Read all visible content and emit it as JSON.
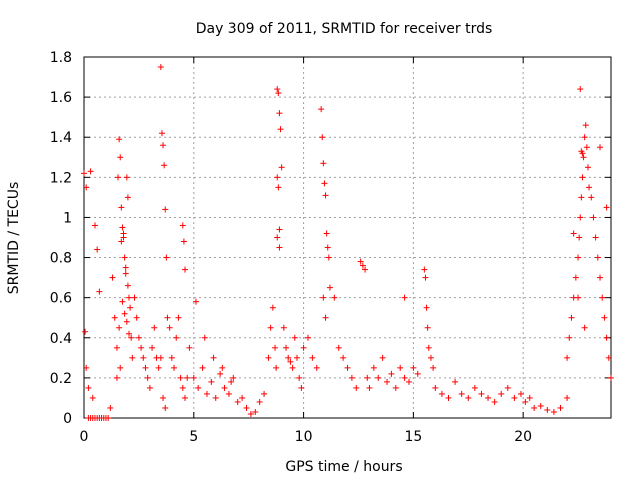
{
  "chart_data": {
    "type": "scatter",
    "title": "Day 309 of 2011, SRMTID for receiver trds",
    "xlabel": "GPS time / hours",
    "ylabel": "SRMTID / TECUs",
    "xlim": [
      0,
      24
    ],
    "ylim": [
      0,
      1.8
    ],
    "x_ticks": [
      0,
      5,
      10,
      15,
      20
    ],
    "x_tick_labels": [
      "0",
      "5",
      "10",
      "15",
      "20"
    ],
    "y_ticks": [
      0,
      0.2,
      0.4,
      0.6,
      0.8,
      1.0,
      1.2,
      1.4,
      1.6,
      1.8
    ],
    "y_tick_labels": [
      "0",
      "0.2",
      "0.4",
      "0.6",
      "0.8",
      "1",
      "1.2",
      "1.4",
      "1.6",
      "1.8"
    ],
    "grid": true,
    "marker": "+",
    "marker_color": "#ff0000",
    "series": [
      {
        "name": "SRMTID",
        "x": [
          0.0,
          0.05,
          0.1,
          0.2,
          0.3,
          0.4,
          0.5,
          0.6,
          0.7,
          0.8,
          0.9,
          1.0,
          1.1,
          1.2,
          0.1,
          0.3,
          0.5,
          0.6,
          0.7,
          0.2,
          0.4,
          1.3,
          1.4,
          1.5,
          1.55,
          1.6,
          1.65,
          1.7,
          1.75,
          1.8,
          1.85,
          1.9,
          1.95,
          2.0,
          2.05,
          2.1,
          2.15,
          2.2,
          1.7,
          1.8,
          1.9,
          2.0,
          1.6,
          1.75,
          1.85,
          1.95,
          2.05,
          1.5,
          1.65,
          2.3,
          2.4,
          2.5,
          2.6,
          2.7,
          2.8,
          2.9,
          3.0,
          3.1,
          3.2,
          3.3,
          3.4,
          3.5,
          3.55,
          3.6,
          3.65,
          3.7,
          3.75,
          3.8,
          3.6,
          3.7,
          3.5,
          3.9,
          4.0,
          4.1,
          4.2,
          4.3,
          4.4,
          4.5,
          4.6,
          4.7,
          4.8,
          4.5,
          4.55,
          4.6,
          5.0,
          5.2,
          5.4,
          5.6,
          5.8,
          6.0,
          6.2,
          6.4,
          6.6,
          6.8,
          7.0,
          5.1,
          5.5,
          5.9,
          6.3,
          6.7,
          7.2,
          7.4,
          7.6,
          7.8,
          8.0,
          8.2,
          8.4,
          8.5,
          8.6,
          8.7,
          8.75,
          8.8,
          8.85,
          8.9,
          8.95,
          9.0,
          8.8,
          8.85,
          8.9,
          8.8,
          8.9,
          9.1,
          9.2,
          9.3,
          9.4,
          9.5,
          9.6,
          9.7,
          9.8,
          9.9,
          10.0,
          10.2,
          10.4,
          10.6,
          10.8,
          10.85,
          10.9,
          10.95,
          11.0,
          11.05,
          11.1,
          11.15,
          10.9,
          11.0,
          11.2,
          11.4,
          11.6,
          11.8,
          12.0,
          12.2,
          12.4,
          12.6,
          12.7,
          12.8,
          12.9,
          13.0,
          13.2,
          13.4,
          13.6,
          13.8,
          14.0,
          14.2,
          14.4,
          14.6,
          14.8,
          15.0,
          15.2,
          14.6,
          15.5,
          15.55,
          15.6,
          15.65,
          15.7,
          15.8,
          15.9,
          16.0,
          16.3,
          16.6,
          16.9,
          17.2,
          17.5,
          17.8,
          18.1,
          18.4,
          18.7,
          19.0,
          19.3,
          19.6,
          19.9,
          20.1,
          20.3,
          20.5,
          20.8,
          21.1,
          21.4,
          21.7,
          22.0,
          22.0,
          22.1,
          22.2,
          22.3,
          22.4,
          22.5,
          22.55,
          22.6,
          22.65,
          22.7,
          22.75,
          22.8,
          22.85,
          22.9,
          22.95,
          23.0,
          23.1,
          23.2,
          23.3,
          23.4,
          23.5,
          23.6,
          23.7,
          23.8,
          23.9,
          24.0,
          22.6,
          22.65,
          22.7,
          22.3,
          22.5,
          22.8,
          23.5,
          23.8
        ],
        "y": [
          1.22,
          0.43,
          1.15,
          0.0,
          0.0,
          0.0,
          0.0,
          0.0,
          0.0,
          0.0,
          0.0,
          0.0,
          0.0,
          0.05,
          0.25,
          1.23,
          0.96,
          0.84,
          0.63,
          0.15,
          0.1,
          0.7,
          0.5,
          0.35,
          1.2,
          1.39,
          1.3,
          1.05,
          0.95,
          0.9,
          0.8,
          0.75,
          1.2,
          1.1,
          0.6,
          0.55,
          0.4,
          0.3,
          0.88,
          0.92,
          0.72,
          0.66,
          0.45,
          0.58,
          0.52,
          0.48,
          0.42,
          0.2,
          0.25,
          0.6,
          0.5,
          0.4,
          0.35,
          0.3,
          0.25,
          0.2,
          0.15,
          0.35,
          0.45,
          0.3,
          0.25,
          1.75,
          1.42,
          1.36,
          1.26,
          1.04,
          0.8,
          0.5,
          0.1,
          0.05,
          0.3,
          0.45,
          0.3,
          0.25,
          0.4,
          0.5,
          0.2,
          0.15,
          0.1,
          0.2,
          0.35,
          0.96,
          0.88,
          0.74,
          0.2,
          0.15,
          0.25,
          0.12,
          0.18,
          0.1,
          0.22,
          0.15,
          0.12,
          0.2,
          0.08,
          0.58,
          0.4,
          0.3,
          0.25,
          0.18,
          0.1,
          0.05,
          0.02,
          0.03,
          0.08,
          0.12,
          0.3,
          0.45,
          0.55,
          0.35,
          0.25,
          1.64,
          1.62,
          1.52,
          1.44,
          1.25,
          1.2,
          1.15,
          0.94,
          0.9,
          0.85,
          0.45,
          0.35,
          0.3,
          0.28,
          0.25,
          0.4,
          0.3,
          0.2,
          0.15,
          0.35,
          0.4,
          0.3,
          0.25,
          1.54,
          1.4,
          1.27,
          1.17,
          1.11,
          0.92,
          0.85,
          0.8,
          0.6,
          0.5,
          0.65,
          0.6,
          0.35,
          0.3,
          0.25,
          0.2,
          0.15,
          0.78,
          0.76,
          0.74,
          0.2,
          0.15,
          0.25,
          0.2,
          0.3,
          0.18,
          0.22,
          0.15,
          0.25,
          0.2,
          0.18,
          0.25,
          0.22,
          0.6,
          0.74,
          0.7,
          0.55,
          0.45,
          0.35,
          0.3,
          0.25,
          0.15,
          0.12,
          0.1,
          0.18,
          0.12,
          0.1,
          0.15,
          0.12,
          0.1,
          0.08,
          0.12,
          0.15,
          0.1,
          0.12,
          0.08,
          0.1,
          0.05,
          0.06,
          0.04,
          0.03,
          0.05,
          0.1,
          0.3,
          0.4,
          0.5,
          0.6,
          0.7,
          0.8,
          0.9,
          1.0,
          1.1,
          1.2,
          1.3,
          1.4,
          1.46,
          1.35,
          1.25,
          1.15,
          1.1,
          1.0,
          0.9,
          0.8,
          0.7,
          0.6,
          0.5,
          0.4,
          0.3,
          0.2,
          1.64,
          1.33,
          1.32,
          0.92,
          0.6,
          0.45,
          1.35,
          1.05
        ]
      }
    ]
  }
}
